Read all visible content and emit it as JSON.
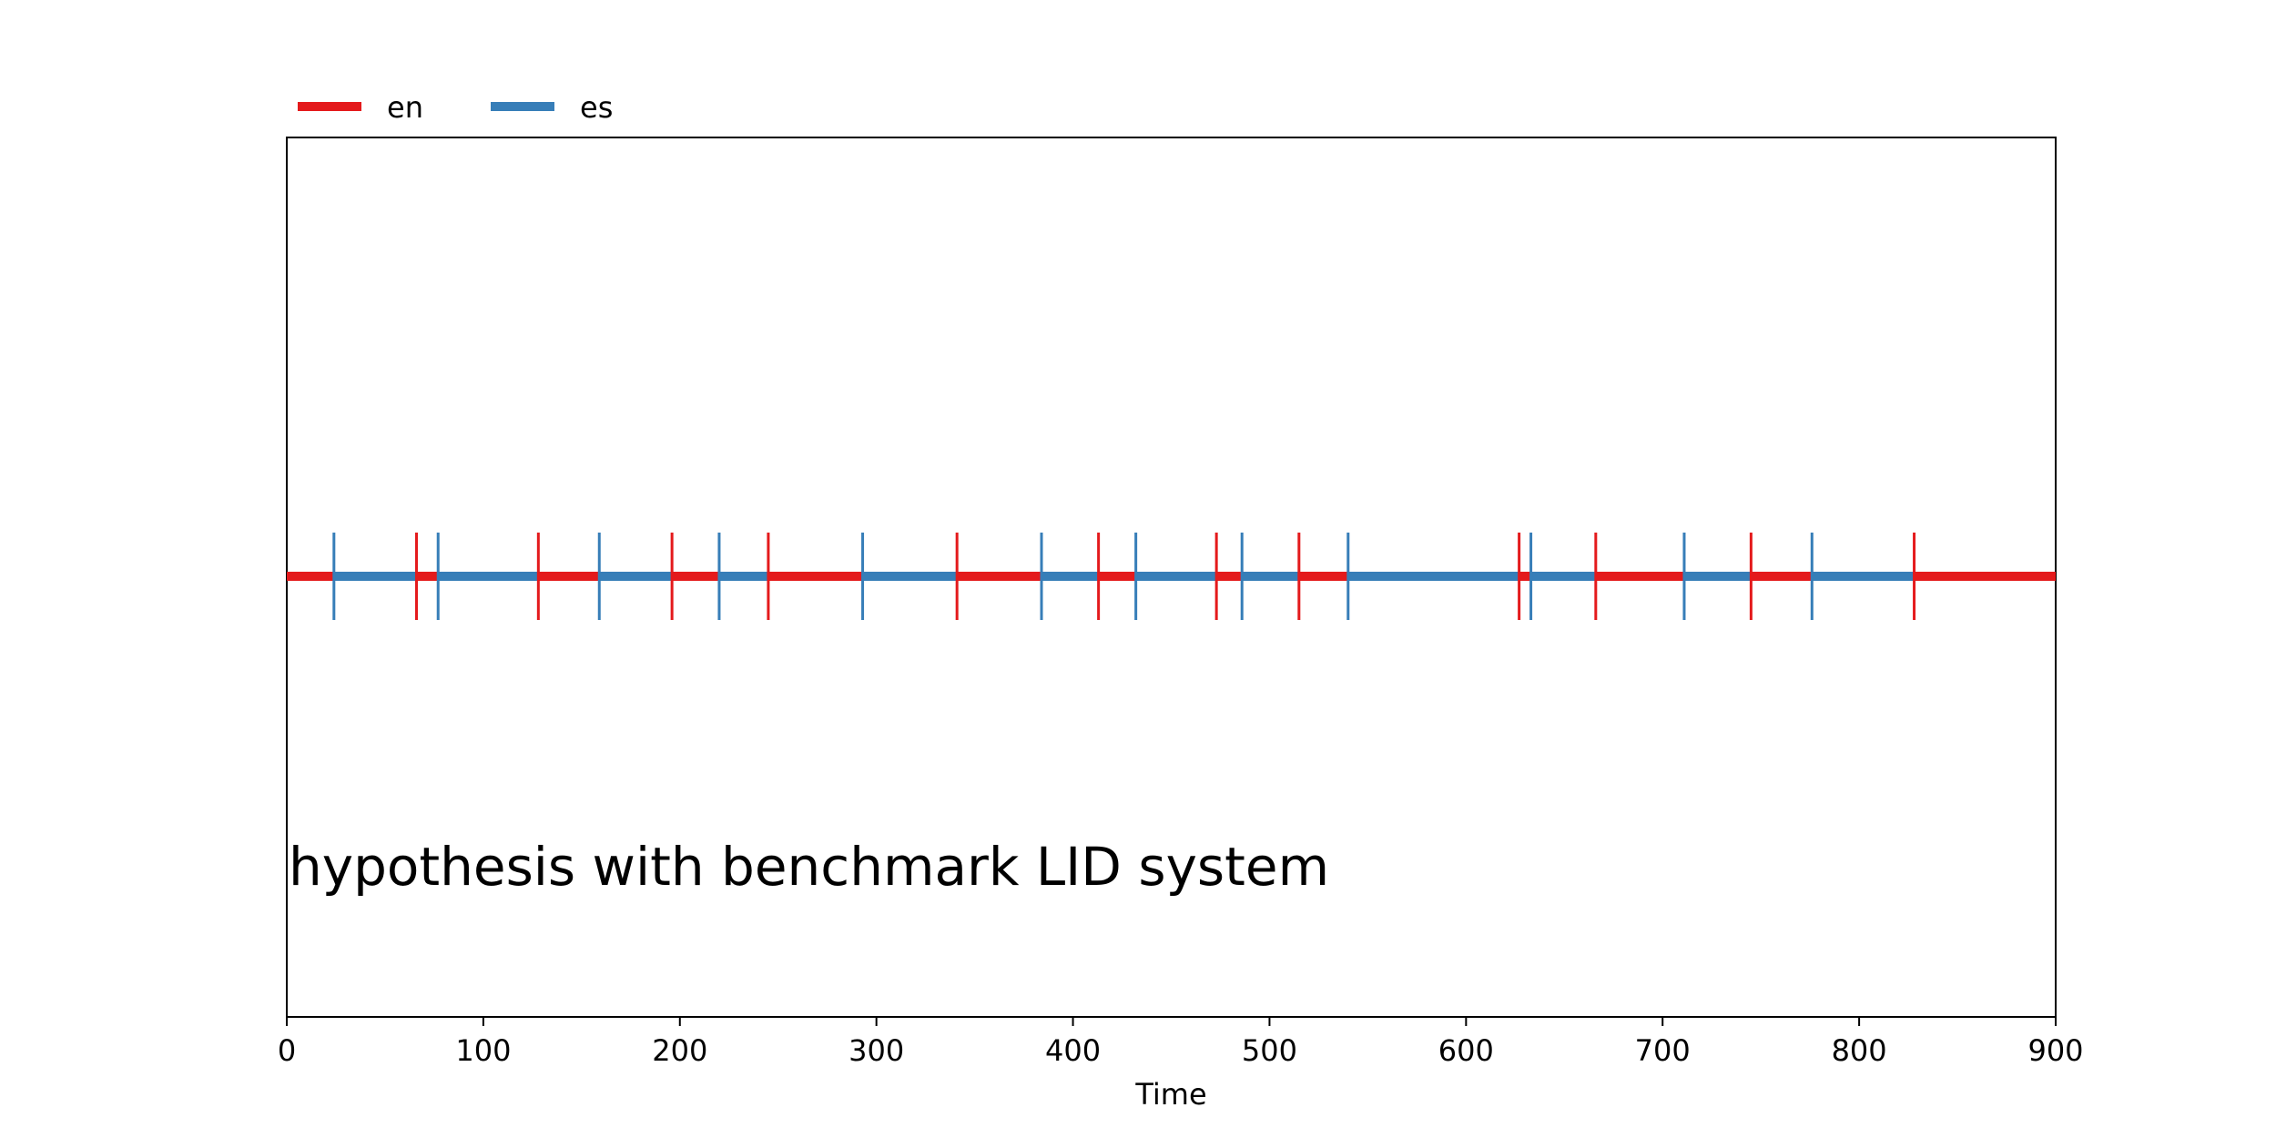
{
  "chart_data": {
    "type": "timeline",
    "xlabel": "Time",
    "xlim": [
      0,
      900
    ],
    "xticks": [
      0,
      100,
      200,
      300,
      400,
      500,
      600,
      700,
      800,
      900
    ],
    "grid": false,
    "legend_placement": "top-left, outside above plot",
    "legend": [
      {
        "name": "en",
        "color": "#e41a1c"
      },
      {
        "name": "es",
        "color": "#377eb8"
      }
    ],
    "annotation": "hypothesis with benchmark LID system",
    "segments": [
      {
        "lang": "en",
        "start": 0,
        "end": 24
      },
      {
        "lang": "es",
        "start": 24,
        "end": 66
      },
      {
        "lang": "en",
        "start": 66,
        "end": 77
      },
      {
        "lang": "es",
        "start": 77,
        "end": 128
      },
      {
        "lang": "en",
        "start": 128,
        "end": 159
      },
      {
        "lang": "es",
        "start": 159,
        "end": 196
      },
      {
        "lang": "en",
        "start": 196,
        "end": 220
      },
      {
        "lang": "es",
        "start": 220,
        "end": 245
      },
      {
        "lang": "en",
        "start": 245,
        "end": 293
      },
      {
        "lang": "es",
        "start": 293,
        "end": 341
      },
      {
        "lang": "en",
        "start": 341,
        "end": 384
      },
      {
        "lang": "es",
        "start": 384,
        "end": 413
      },
      {
        "lang": "en",
        "start": 413,
        "end": 432
      },
      {
        "lang": "es",
        "start": 432,
        "end": 473
      },
      {
        "lang": "en",
        "start": 473,
        "end": 486
      },
      {
        "lang": "es",
        "start": 486,
        "end": 515
      },
      {
        "lang": "en",
        "start": 515,
        "end": 540
      },
      {
        "lang": "es",
        "start": 540,
        "end": 627
      },
      {
        "lang": "en",
        "start": 627,
        "end": 633
      },
      {
        "lang": "es",
        "start": 633,
        "end": 666
      },
      {
        "lang": "en",
        "start": 666,
        "end": 711
      },
      {
        "lang": "es",
        "start": 711,
        "end": 745
      },
      {
        "lang": "en",
        "start": 745,
        "end": 776
      },
      {
        "lang": "es",
        "start": 776,
        "end": 828
      },
      {
        "lang": "en",
        "start": 828,
        "end": 900
      }
    ]
  }
}
